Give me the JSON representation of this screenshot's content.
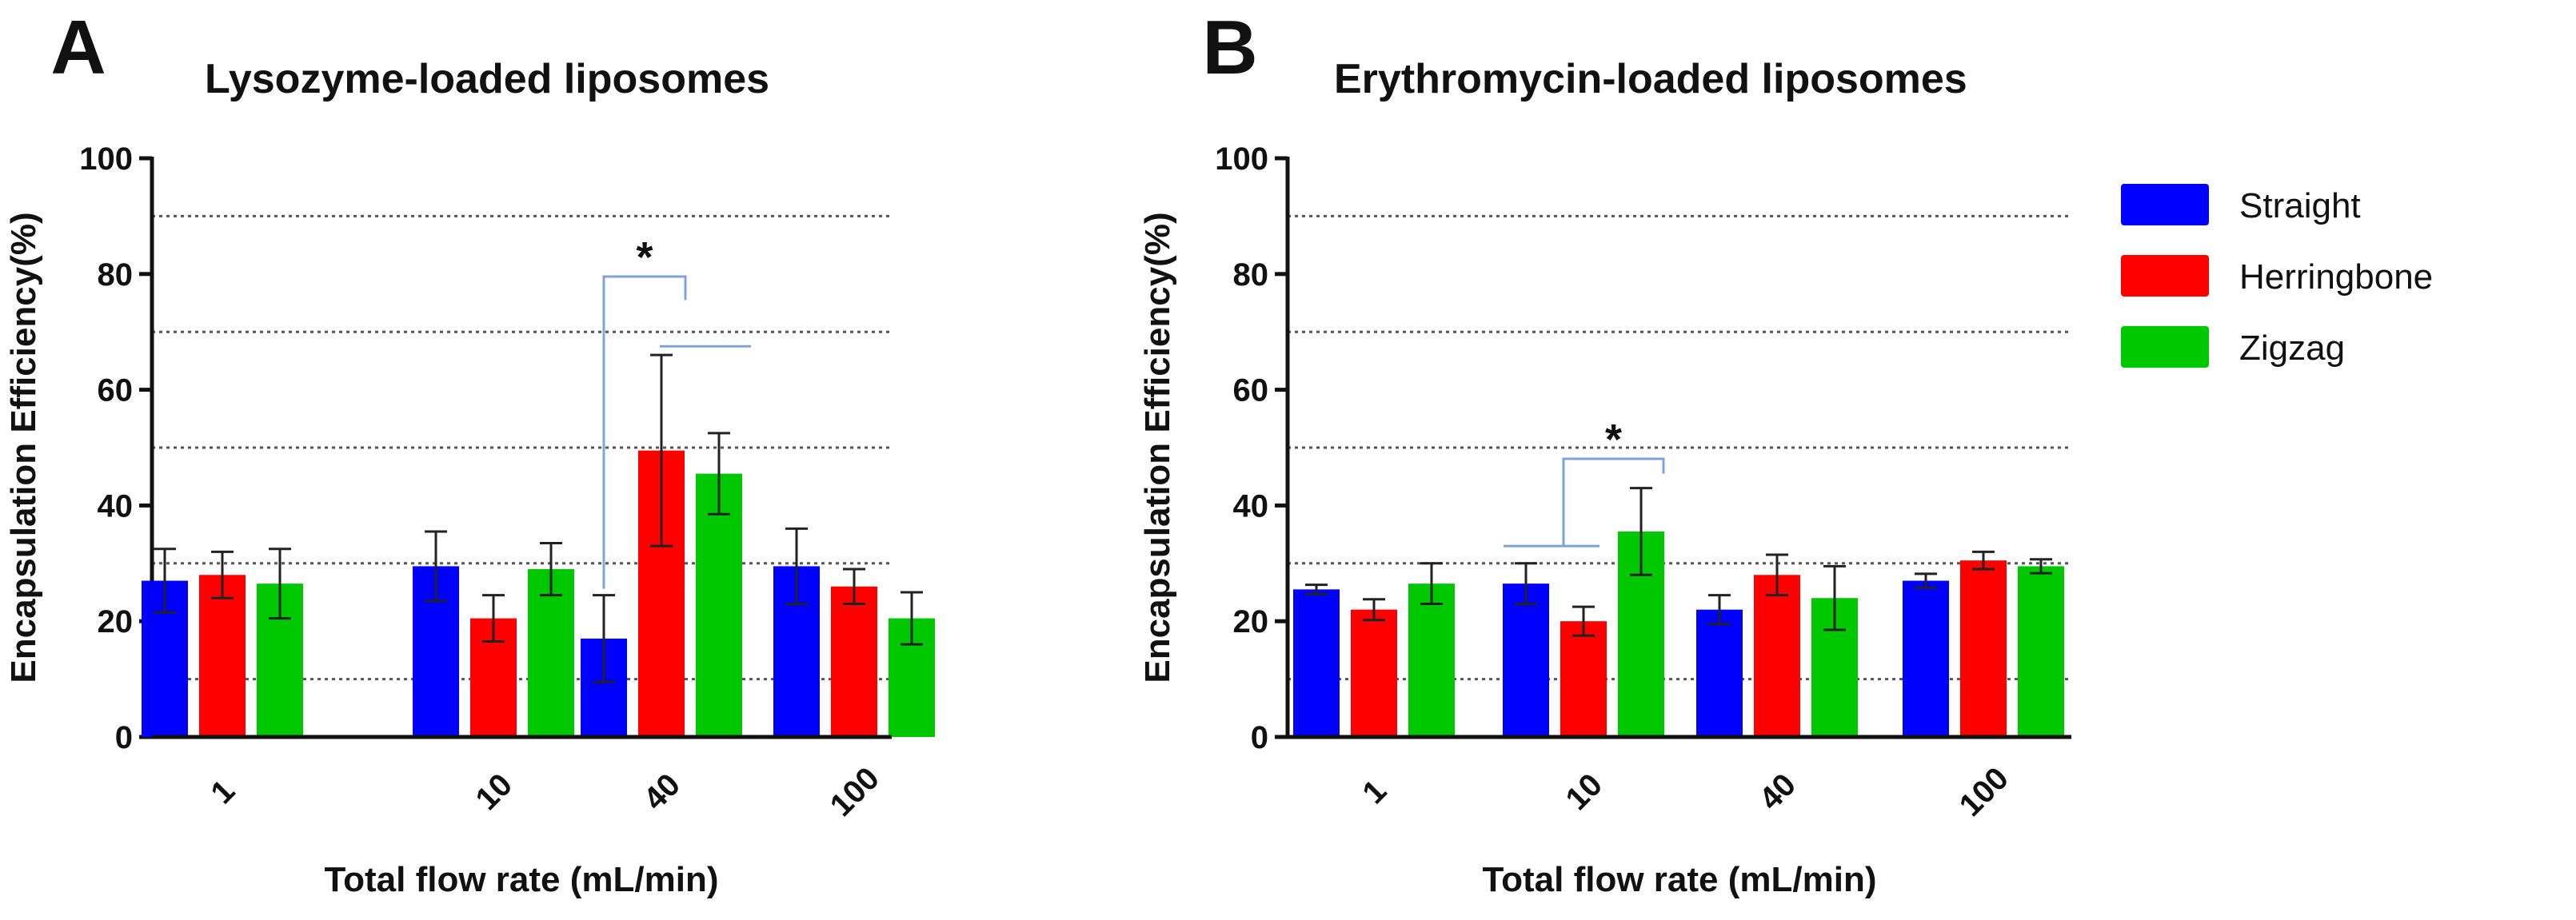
{
  "chart_data": [
    {
      "type": "bar",
      "panel": "A",
      "title": "Lysozyme-loaded liposomes",
      "xlabel": "Total flow rate (mL/min)",
      "ylabel": "Encapsulation Efficiency(%)",
      "ylim": [
        0,
        100
      ],
      "yticks": [
        "0",
        "20",
        "40",
        "60",
        "80",
        "100"
      ],
      "grid_values": [
        10,
        30,
        50,
        70,
        90
      ],
      "categories": [
        "1",
        "10",
        "40",
        "100"
      ],
      "series": [
        {
          "name": "Straight",
          "values": [
            27,
            29.5,
            17,
            29.5
          ],
          "errors": [
            5.5,
            6,
            7.5,
            6.5
          ]
        },
        {
          "name": "Herringbone",
          "values": [
            28,
            20.5,
            49.5,
            26
          ],
          "errors": [
            4,
            4,
            16.5,
            3
          ]
        },
        {
          "name": "Zigzag",
          "values": [
            26.5,
            29,
            45.5,
            20.5
          ],
          "errors": [
            6,
            4.5,
            7,
            4.5
          ]
        }
      ],
      "significance": [
        {
          "label": "*",
          "category": "40"
        }
      ]
    },
    {
      "type": "bar",
      "panel": "B",
      "title": "Erythromycin-loaded liposomes",
      "xlabel": "Total flow rate (mL/min)",
      "ylabel": "Encapsulation Efficiency(%)",
      "ylim": [
        0,
        100
      ],
      "yticks": [
        "0",
        "20",
        "40",
        "60",
        "80",
        "100"
      ],
      "grid_values": [
        10,
        30,
        50,
        70,
        90
      ],
      "categories": [
        "1",
        "10",
        "40",
        "100"
      ],
      "series": [
        {
          "name": "Straight",
          "values": [
            25.5,
            26.5,
            22,
            27
          ],
          "errors": [
            0.8,
            3.5,
            2.5,
            1.2
          ]
        },
        {
          "name": "Herringbone",
          "values": [
            22,
            20,
            28,
            30.5
          ],
          "errors": [
            1.8,
            2.5,
            3.5,
            1.5
          ]
        },
        {
          "name": "Zigzag",
          "values": [
            26.5,
            35.5,
            24,
            29.5
          ],
          "errors": [
            3.5,
            7.5,
            5.5,
            1.2
          ]
        }
      ],
      "significance": [
        {
          "label": "*",
          "category": "10"
        }
      ]
    }
  ],
  "legend": [
    {
      "label": "Straight",
      "color": "#0000ff"
    },
    {
      "label": "Herringbone",
      "color": "#ff0000"
    },
    {
      "label": "Zigzag",
      "color": "#00c800"
    }
  ],
  "colors": {
    "grid": "#555555",
    "axis": "#111111",
    "bracket": "#7fa3d8"
  }
}
